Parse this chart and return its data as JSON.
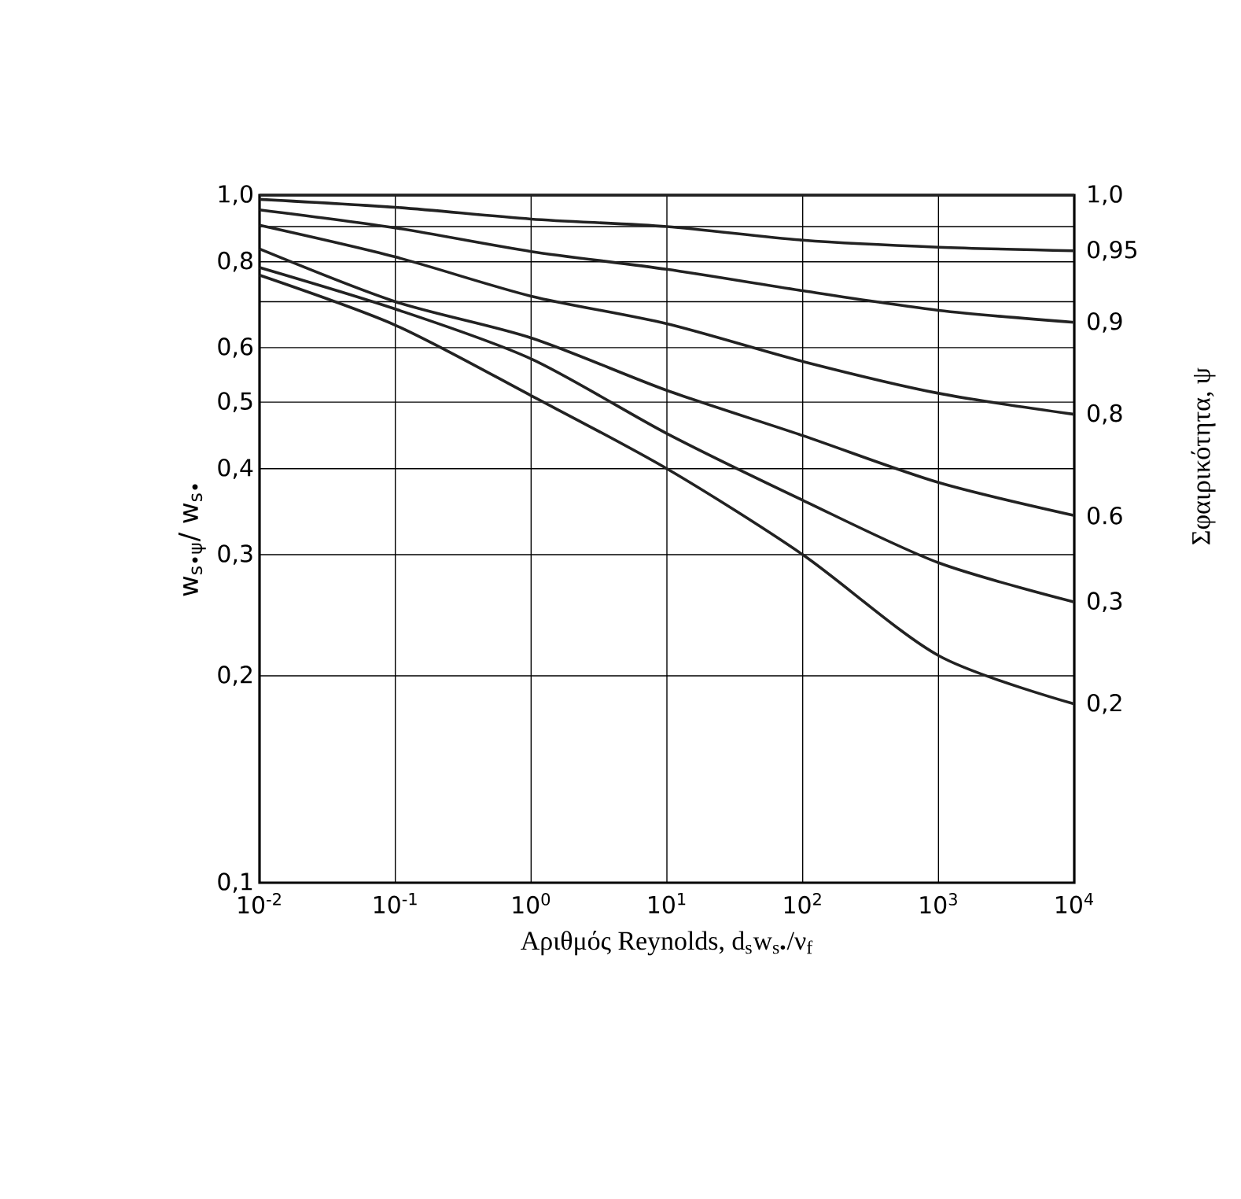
{
  "chart_data": {
    "type": "line",
    "xlabel": "Αριθμός Reynolds, d$_{s}$w$_{s•}$/ν$_{f}$",
    "ylabel": "w$_{s•ψ}$/ w$_{s•}$",
    "legend_title": "Σφαιρικότητα, ψ",
    "log": "xy",
    "grid": true,
    "marker": "none",
    "line_style": "solid",
    "xlim": [
      0.01,
      10000
    ],
    "ylim": [
      0.1,
      1.0
    ],
    "xticks": [
      {
        "value": 0.01,
        "label": "10$^{-2}$"
      },
      {
        "value": 0.1,
        "label": "10$^{-1}$"
      },
      {
        "value": 1,
        "label": "10$^{0}$"
      },
      {
        "value": 10,
        "label": "10$^{1}$"
      },
      {
        "value": 100,
        "label": "10$^{2}$"
      },
      {
        "value": 1000,
        "label": "10$^{3}$"
      },
      {
        "value": 10000,
        "label": "10$^{4}$"
      }
    ],
    "yticks": [
      {
        "value": 0.1,
        "label": "0,1"
      },
      {
        "value": 0.2,
        "label": "0,2"
      },
      {
        "value": 0.3,
        "label": "0,3"
      },
      {
        "value": 0.4,
        "label": "0,4"
      },
      {
        "value": 0.5,
        "label": "0,5"
      },
      {
        "value": 0.6,
        "label": "0,6"
      },
      {
        "value": 0.7,
        "label": null
      },
      {
        "value": 0.8,
        "label": "0,8"
      },
      {
        "value": 0.9,
        "label": null
      },
      {
        "value": 1.0,
        "label": "1,0"
      }
    ],
    "x": [
      0.01,
      0.1,
      1,
      10,
      100,
      1000,
      10000
    ],
    "series": [
      {
        "name": "1,0",
        "color": "#222222",
        "values": [
          1.0,
          1.0,
          1.0,
          1.0,
          1.0,
          1.0,
          1.0
        ]
      },
      {
        "name": "0,95",
        "color": "#222222",
        "values": [
          0.986,
          0.96,
          0.923,
          0.9,
          0.86,
          0.84,
          0.83
        ]
      },
      {
        "name": "0,9",
        "color": "#222222",
        "values": [
          0.952,
          0.896,
          0.828,
          0.78,
          0.726,
          0.68,
          0.653
        ]
      },
      {
        "name": "0,8",
        "color": "#222222",
        "values": [
          0.904,
          0.813,
          0.713,
          0.65,
          0.573,
          0.515,
          0.48
        ]
      },
      {
        "name": "0.6",
        "color": "#222222",
        "values": [
          0.835,
          0.7,
          0.62,
          0.52,
          0.447,
          0.382,
          0.342
        ]
      },
      {
        "name": "0,3",
        "color": "#222222",
        "values": [
          0.785,
          0.683,
          0.578,
          0.45,
          0.36,
          0.292,
          0.256
        ]
      },
      {
        "name": "0,2",
        "color": "#222222",
        "values": [
          0.765,
          0.647,
          0.511,
          0.4,
          0.3,
          0.214,
          0.182
        ]
      }
    ]
  }
}
